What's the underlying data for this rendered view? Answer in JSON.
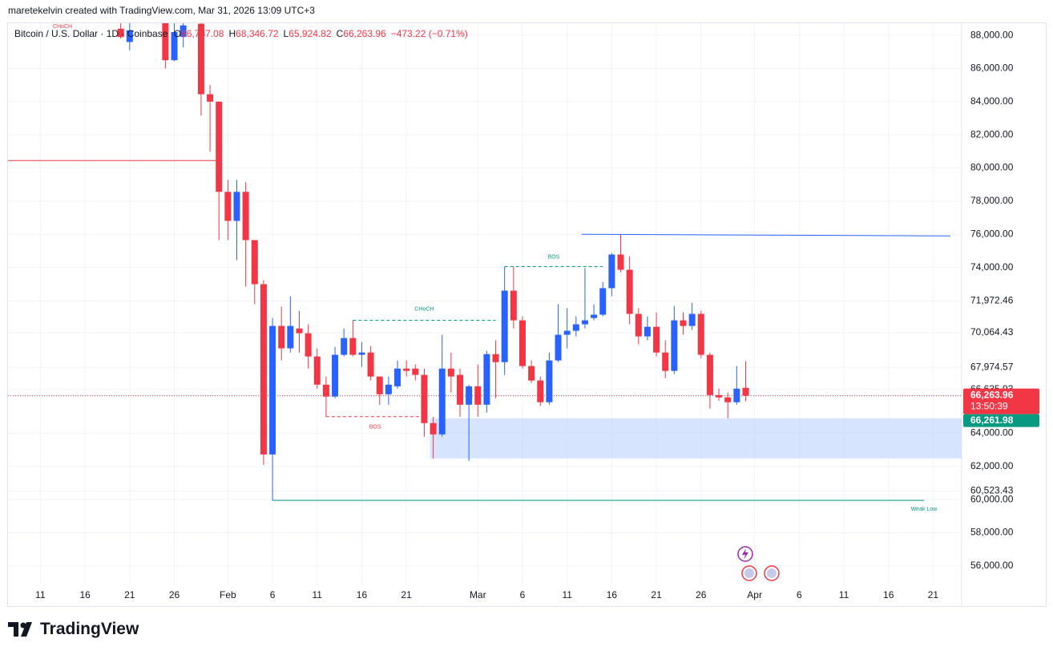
{
  "attribution": "maretekelvin created with TradingView.com, Mar 31, 2026 13:09 UTC+3",
  "brand": "TradingView",
  "legend": {
    "symbol": "Bitcoin / U.S. Dollar · 1D · Coinbase",
    "items": [
      {
        "key": "O",
        "text": "66,737.08"
      },
      {
        "key": "H",
        "text": "68,346.72"
      },
      {
        "key": "L",
        "text": "65,924.82"
      },
      {
        "key": "C",
        "text": "66,263.96"
      }
    ],
    "change": "−473.22 (−0.71%)"
  },
  "chart_data": {
    "type": "candlestick",
    "up_color": "#2962ff",
    "down_color": "#f23645",
    "grid": true,
    "categories": [
      null,
      null,
      null,
      "11",
      null,
      null,
      null,
      null,
      "16",
      null,
      null,
      null,
      null,
      "21",
      null,
      null,
      null,
      null,
      "26",
      null,
      null,
      null,
      null,
      null,
      "Feb",
      null,
      null,
      null,
      null,
      "6",
      null,
      null,
      null,
      null,
      "11",
      null,
      null,
      null,
      null,
      "16",
      null,
      null,
      null,
      null,
      "21",
      null,
      null,
      null,
      null,
      null,
      null,
      null,
      "Mar",
      null,
      null,
      null,
      null,
      "6",
      null,
      null,
      null,
      null,
      "11",
      null,
      null,
      null,
      null,
      "16",
      null,
      null,
      null,
      null,
      "21",
      null,
      null,
      null,
      null,
      "26",
      null,
      null,
      null,
      null,
      null,
      "Apr",
      null,
      null,
      null,
      null,
      "6",
      null,
      null,
      null,
      null,
      "11",
      null,
      null,
      null,
      null,
      "16",
      null,
      null,
      null,
      null,
      "21",
      null,
      null
    ],
    "open": [
      null,
      null,
      null,
      null,
      null,
      null,
      null,
      null,
      null,
      null,
      null,
      null,
      88400,
      87600,
      null,
      null,
      null,
      89000,
      86500,
      87900,
      null,
      88700,
      84450,
      84000,
      78560,
      76810,
      78560,
      75650,
      72990,
      62720,
      70470,
      69120,
      70320,
      70030,
      68630,
      66930,
      66210,
      68730,
      69740,
      68730,
      68870,
      67420,
      66350,
      66830,
      67900,
      67900,
      67520,
      64610,
      63930,
      67900,
      67520,
      65720,
      66830,
      65720,
      68770,
      68290,
      72600,
      70810,
      68050,
      67180,
      65870,
      68390,
      69940,
      70180,
      70570,
      70950,
      71150,
      72750,
      74780,
      73860,
      71200,
      69840,
      70420,
      68870,
      67760,
      70810,
      70470,
      71200,
      68730,
      66300,
      66160,
      65870,
      66737.08,
      null,
      null,
      null,
      null,
      null,
      null,
      null,
      null,
      null,
      null,
      null,
      null,
      null,
      null,
      null,
      null,
      null,
      null,
      null,
      null,
      null,
      null,
      null
    ],
    "high": [
      null,
      null,
      null,
      null,
      null,
      null,
      null,
      null,
      null,
      null,
      null,
      null,
      89000,
      88800,
      null,
      null,
      null,
      89200,
      89000,
      89000,
      null,
      88900,
      85000,
      84000,
      79280,
      79280,
      79140,
      75650,
      73230,
      70950,
      71630,
      72260,
      71390,
      70570,
      69120,
      67420,
      69210,
      70320,
      70810,
      69500,
      69260,
      67420,
      67420,
      68390,
      68390,
      68150,
      67900,
      65000,
      69940,
      68870,
      67900,
      66930,
      68150,
      68970,
      69600,
      74050,
      74050,
      71050,
      68390,
      67420,
      68870,
      71780,
      71540,
      71050,
      73960,
      71780,
      73130,
      74880,
      76000,
      74680,
      71540,
      71050,
      71290,
      69600,
      71680,
      71290,
      71870,
      71390,
      68870,
      66690,
      66450,
      68050,
      68346.72,
      null,
      null,
      null,
      null,
      null,
      null,
      null,
      null,
      null,
      null,
      null,
      null,
      null,
      null,
      null,
      null,
      null,
      null,
      null,
      null,
      null,
      null,
      null
    ],
    "low": [
      null,
      null,
      null,
      null,
      null,
      null,
      null,
      null,
      null,
      null,
      null,
      null,
      87800,
      87100,
      null,
      null,
      null,
      86000,
      86450,
      87270,
      null,
      83150,
      80980,
      75650,
      75650,
      74440,
      72840,
      71780,
      62090,
      59950,
      68390,
      68870,
      68870,
      67900,
      66690,
      65000,
      66110,
      68630,
      68630,
      68000,
      67180,
      65720,
      65720,
      66690,
      67420,
      67180,
      63790,
      62480,
      63790,
      66450,
      65000,
      62330,
      65000,
      65240,
      66110,
      67520,
      70320,
      67900,
      67030,
      65630,
      65720,
      68290,
      69120,
      69840,
      70320,
      70810,
      71050,
      72260,
      73710,
      70570,
      69360,
      69600,
      68630,
      67320,
      67570,
      69940,
      70230,
      68530,
      65480,
      65960,
      64900,
      65720,
      65924.82,
      null,
      null,
      null,
      null,
      null,
      null,
      null,
      null,
      null,
      null,
      null,
      null,
      null,
      null,
      null,
      null,
      null,
      null,
      null,
      null,
      null,
      null,
      null
    ],
    "close": [
      null,
      null,
      null,
      null,
      null,
      null,
      null,
      null,
      null,
      null,
      null,
      null,
      87900,
      88300,
      null,
      null,
      null,
      86500,
      88200,
      88600,
      null,
      84450,
      84000,
      78560,
      76810,
      78560,
      75650,
      72990,
      62720,
      70470,
      69120,
      70470,
      70030,
      68630,
      66930,
      66210,
      68730,
      69740,
      68730,
      68870,
      67420,
      66350,
      66930,
      67900,
      67760,
      67520,
      64610,
      63930,
      67900,
      67420,
      65720,
      66830,
      65720,
      68770,
      68290,
      72600,
      70810,
      68050,
      67180,
      65870,
      68390,
      69940,
      70180,
      70570,
      70810,
      71150,
      72750,
      74780,
      73860,
      71200,
      69840,
      70420,
      68870,
      67760,
      70810,
      70470,
      71200,
      68730,
      66300,
      66160,
      65870,
      66690,
      66263.96,
      null,
      null,
      null,
      null,
      null,
      null,
      null,
      null,
      null,
      null,
      null,
      null,
      null,
      null,
      null,
      null,
      null,
      null,
      null,
      null,
      null,
      null,
      null
    ],
    "ylim": [
      54830,
      88730
    ],
    "yticks": [
      {
        "value": 88000,
        "label": "88,000.00"
      },
      {
        "value": 86000,
        "label": "86,000.00"
      },
      {
        "value": 84000,
        "label": "84,000.00"
      },
      {
        "value": 82000,
        "label": "82,000.00"
      },
      {
        "value": 80000,
        "label": "80,000.00"
      },
      {
        "value": 78000,
        "label": "78,000.00"
      },
      {
        "value": 76000,
        "label": "76,000.00"
      },
      {
        "value": 74000,
        "label": "74,000.00"
      },
      {
        "value": 71972.46,
        "label": "71,972.46"
      },
      {
        "value": 70064.43,
        "label": "70,064.43"
      },
      {
        "value": 67974.57,
        "label": "67,974.57"
      },
      {
        "value": 66635.93,
        "label": "66,635.93"
      },
      {
        "value": 64000,
        "label": "64,000.00"
      },
      {
        "value": 62000,
        "label": "62,000.00"
      },
      {
        "value": 60523.43,
        "label": "60,523.43"
      },
      {
        "value": 60000,
        "label": "60,000.00"
      },
      {
        "value": 58000,
        "label": "58,000.00"
      },
      {
        "value": 56000,
        "label": "56,000.00"
      }
    ],
    "last_price": {
      "value": 66263.96,
      "label": "66,263.96",
      "countdown": "13:50:39",
      "color": "#f23645"
    },
    "bid_price": {
      "value": 66261.98,
      "label": "66,261.98",
      "color": "#089981"
    },
    "annotations": [
      {
        "label": "CHoCH",
        "value": 70810,
        "color": "#089981",
        "style": "dashed"
      },
      {
        "label": "BOS",
        "value": 65000,
        "color": "#f23645",
        "style": "dashed"
      },
      {
        "label": "BOS",
        "value": 74050,
        "color": "#089981",
        "style": "dashed"
      },
      {
        "label": "Weak Low",
        "value": 59950,
        "color": "#089981",
        "style": "solid"
      }
    ],
    "top_label": {
      "label": "CHoCH",
      "color": "#f23645"
    },
    "red_level": {
      "value": 80446,
      "color": "#f23645"
    },
    "trend_line": {
      "from": 76000,
      "to": 75900,
      "color": "#2962ff"
    },
    "zone": {
      "top": 64900,
      "bottom": 62480,
      "color": "#bbd4fb"
    }
  }
}
